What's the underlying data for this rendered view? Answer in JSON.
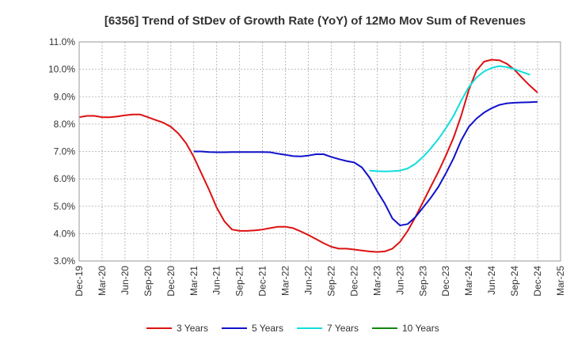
{
  "chart_data": {
    "type": "line",
    "title": "[6356]  Trend of StDev of Growth Rate (YoY) of 12Mo Mov Sum of Revenues",
    "xlabel": "",
    "ylabel": "",
    "ylim": [
      3.0,
      11.0
    ],
    "y_ticks": [
      "3.0%",
      "4.0%",
      "5.0%",
      "6.0%",
      "7.0%",
      "8.0%",
      "9.0%",
      "10.0%",
      "11.0%"
    ],
    "x_ticks": [
      "Dec-19",
      "Mar-20",
      "Jun-20",
      "Sep-20",
      "Dec-20",
      "Mar-21",
      "Jun-21",
      "Sep-21",
      "Dec-21",
      "Mar-22",
      "Jun-22",
      "Sep-22",
      "Dec-22",
      "Mar-23",
      "Jun-23",
      "Sep-23",
      "Dec-23",
      "Mar-24",
      "Jun-24",
      "Sep-24",
      "Dec-24",
      "Mar-25"
    ],
    "grid": true,
    "legend_position": "bottom",
    "series": [
      {
        "name": "3 Years",
        "color": "#dd1111",
        "start_month": 0,
        "values": [
          8.25,
          8.3,
          8.3,
          8.25,
          8.25,
          8.28,
          8.32,
          8.35,
          8.35,
          8.25,
          8.15,
          8.05,
          7.9,
          7.65,
          7.3,
          6.8,
          6.2,
          5.6,
          4.95,
          4.45,
          4.15,
          4.1,
          4.1,
          4.12,
          4.15,
          4.2,
          4.25,
          4.25,
          4.2,
          4.08,
          3.95,
          3.8,
          3.65,
          3.52,
          3.45,
          3.45,
          3.42,
          3.38,
          3.35,
          3.33,
          3.35,
          3.45,
          3.7,
          4.1,
          4.6,
          5.15,
          5.7,
          6.25,
          6.85,
          7.5,
          8.3,
          9.25,
          9.95,
          10.28,
          10.35,
          10.33,
          10.2,
          9.98,
          9.68,
          9.4,
          9.15
        ]
      },
      {
        "name": "5 Years",
        "color": "#1111cc",
        "start_month": 15,
        "values": [
          7.0,
          7.0,
          6.98,
          6.97,
          6.97,
          6.98,
          6.98,
          6.98,
          6.98,
          6.98,
          6.97,
          6.92,
          6.88,
          6.83,
          6.82,
          6.85,
          6.9,
          6.9,
          6.8,
          6.72,
          6.65,
          6.6,
          6.42,
          6.05,
          5.55,
          5.1,
          4.55,
          4.3,
          4.35,
          4.6,
          4.95,
          5.3,
          5.7,
          6.2,
          6.75,
          7.4,
          7.9,
          8.2,
          8.42,
          8.58,
          8.7,
          8.76,
          8.78,
          8.79,
          8.8,
          8.81
        ]
      },
      {
        "name": "7 Years",
        "color": "#11dddd",
        "start_month": 38,
        "values": [
          6.3,
          6.28,
          6.27,
          6.28,
          6.3,
          6.38,
          6.55,
          6.8,
          7.1,
          7.45,
          7.85,
          8.3,
          8.85,
          9.35,
          9.7,
          9.92,
          10.05,
          10.12,
          10.08,
          10.0,
          9.9,
          9.8
        ]
      },
      {
        "name": "10 Years",
        "color": "#118811",
        "start_month": 0,
        "values": []
      }
    ]
  }
}
